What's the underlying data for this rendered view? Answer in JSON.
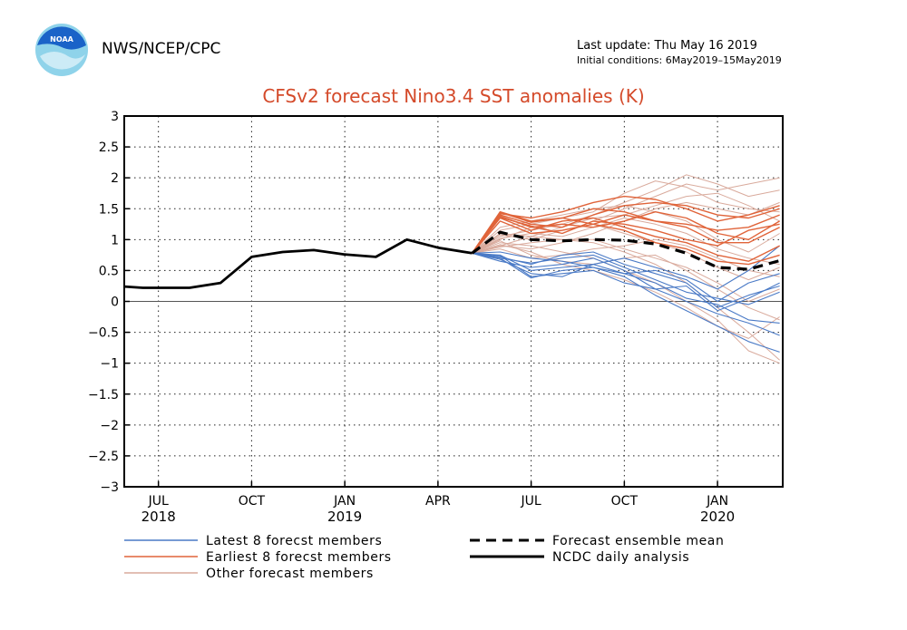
{
  "header": {
    "logo_text": "NOAA",
    "agency": "NWS/NCEP/CPC",
    "last_update": "Last update: Thu May 16 2019",
    "initial_conditions": "Initial conditions: 6May2019–15May2019"
  },
  "colors": {
    "latest": "#4a7ac6",
    "earliest": "#e0643a",
    "other": "#d9aa9c",
    "mean": "#000000",
    "analysis": "#000000",
    "title": "#d44a2a",
    "noaa_blue": "#1a63c8",
    "noaa_cyan": "#8fd3ea"
  },
  "chart_data": {
    "type": "line",
    "title": "CFSv2 forecast Nino3.4 SST anomalies (K)",
    "xlabel": "",
    "ylabel": "",
    "xlim": [
      -2.1,
      19.1
    ],
    "ylim": [
      -3,
      3
    ],
    "yticks": [
      3,
      2.5,
      2,
      1.5,
      1,
      0.5,
      0,
      -0.5,
      -1,
      -1.5,
      -2,
      -2.5,
      -3
    ],
    "ytick_labels": [
      "3",
      "2.5",
      "2",
      "1.5",
      "1",
      "0.5",
      "0",
      "−0.5",
      "−1",
      "−1.5",
      "−2",
      "−2.5",
      "−3"
    ],
    "xticks": [
      {
        "x": -1,
        "label": "JUL",
        "year": "2018"
      },
      {
        "x": 2,
        "label": "OCT",
        "year": ""
      },
      {
        "x": 5,
        "label": "JAN",
        "year": "2019"
      },
      {
        "x": 8,
        "label": "APR",
        "year": ""
      },
      {
        "x": 11,
        "label": "JUL",
        "year": ""
      },
      {
        "x": 14,
        "label": "OCT",
        "year": ""
      },
      {
        "x": 17,
        "label": "JAN",
        "year": "2020"
      }
    ],
    "grid": true,
    "x_unit": "months since Oct 2018 (0 = Sep 2018)",
    "series": [
      {
        "name": "NCDC daily analysis",
        "style": "analysis",
        "x": [
          -2.1,
          -1.5,
          -0.9,
          0,
          1,
          2,
          3,
          4,
          5,
          6,
          7,
          8,
          9.1
        ],
        "values": [
          0.24,
          0.22,
          0.22,
          0.22,
          0.3,
          0.72,
          0.8,
          0.83,
          0.76,
          0.72,
          1.0,
          0.87,
          0.78
        ]
      },
      {
        "name": "Forecast ensemble mean",
        "style": "mean",
        "x": [
          9.1,
          10,
          11,
          12,
          13,
          14,
          15,
          16,
          17,
          18,
          19
        ],
        "values": [
          0.78,
          1.12,
          1.0,
          0.98,
          1.0,
          0.99,
          0.93,
          0.78,
          0.55,
          0.52,
          0.66
        ]
      }
    ],
    "members": {
      "x": [
        9.1,
        10,
        11,
        12,
        13,
        14,
        15,
        16,
        17,
        18,
        19
      ],
      "latest": [
        [
          0.78,
          0.7,
          0.38,
          0.5,
          0.55,
          0.4,
          0.1,
          -0.15,
          -0.4,
          -0.65,
          -0.82
        ],
        [
          0.78,
          0.65,
          0.55,
          0.6,
          0.7,
          0.5,
          0.2,
          0.0,
          -0.2,
          -0.35,
          -0.55
        ],
        [
          0.78,
          0.72,
          0.6,
          0.75,
          0.8,
          0.6,
          0.45,
          0.3,
          -0.1,
          0.1,
          0.25
        ],
        [
          0.78,
          0.75,
          0.5,
          0.55,
          0.6,
          0.45,
          0.3,
          0.05,
          -0.05,
          -0.3,
          -0.35
        ],
        [
          0.78,
          0.68,
          0.45,
          0.4,
          0.6,
          0.7,
          0.55,
          0.4,
          0.2,
          0.5,
          0.9
        ],
        [
          0.78,
          0.8,
          0.7,
          0.65,
          0.55,
          0.45,
          0.5,
          0.35,
          0.0,
          0.3,
          0.45
        ],
        [
          0.78,
          0.7,
          0.62,
          0.7,
          0.75,
          0.55,
          0.35,
          0.15,
          0.05,
          -0.05,
          0.15
        ],
        [
          0.78,
          0.74,
          0.4,
          0.45,
          0.5,
          0.3,
          0.2,
          0.25,
          -0.15,
          0.05,
          0.3
        ]
      ],
      "earliest": [
        [
          0.78,
          1.45,
          1.3,
          1.35,
          1.5,
          1.45,
          1.3,
          1.2,
          0.95,
          0.95,
          1.2
        ],
        [
          0.78,
          1.4,
          1.25,
          1.2,
          1.4,
          1.55,
          1.6,
          1.55,
          1.4,
          1.35,
          1.5
        ],
        [
          0.78,
          1.35,
          1.15,
          1.3,
          1.35,
          1.2,
          1.05,
          0.95,
          0.75,
          0.65,
          0.9
        ],
        [
          0.78,
          1.38,
          1.2,
          1.25,
          1.2,
          1.3,
          1.45,
          1.35,
          1.1,
          1.0,
          1.3
        ],
        [
          0.78,
          1.42,
          1.35,
          1.45,
          1.6,
          1.7,
          1.65,
          1.5,
          1.3,
          1.4,
          1.55
        ],
        [
          0.78,
          1.3,
          1.1,
          1.15,
          1.25,
          1.15,
          0.95,
          0.85,
          0.65,
          0.6,
          0.75
        ],
        [
          0.78,
          1.44,
          1.28,
          1.35,
          1.25,
          1.4,
          1.3,
          1.25,
          1.15,
          1.2,
          1.4
        ],
        [
          0.78,
          1.36,
          1.22,
          1.1,
          1.3,
          1.25,
          1.15,
          1.0,
          0.9,
          1.15,
          1.25
        ]
      ],
      "other": [
        [
          0.78,
          1.0,
          1.2,
          1.1,
          1.3,
          1.5,
          1.7,
          1.9,
          1.8,
          1.9,
          2.0
        ],
        [
          0.78,
          0.9,
          0.85,
          0.95,
          1.1,
          1.3,
          1.5,
          1.6,
          1.5,
          1.4,
          1.6
        ],
        [
          0.78,
          1.1,
          1.05,
          1.0,
          0.95,
          0.8,
          0.6,
          0.3,
          -0.1,
          -0.5,
          -0.95
        ],
        [
          0.78,
          0.95,
          0.9,
          0.8,
          0.7,
          0.5,
          0.3,
          0.0,
          -0.3,
          -0.8,
          -1.0
        ],
        [
          0.78,
          1.05,
          1.15,
          1.25,
          1.4,
          1.6,
          1.8,
          2.05,
          1.9,
          1.7,
          1.8
        ],
        [
          0.78,
          0.85,
          0.7,
          0.75,
          0.85,
          0.9,
          1.0,
          0.9,
          0.7,
          0.5,
          0.4
        ],
        [
          0.78,
          1.2,
          1.3,
          1.4,
          1.5,
          1.55,
          1.45,
          1.3,
          1.0,
          0.8,
          1.1
        ],
        [
          0.78,
          0.92,
          0.8,
          0.6,
          0.5,
          0.35,
          0.15,
          -0.1,
          -0.4,
          -0.6,
          -0.25
        ],
        [
          0.78,
          1.02,
          1.1,
          1.05,
          1.2,
          1.35,
          1.25,
          1.1,
          0.85,
          0.7,
          0.6
        ],
        [
          0.78,
          0.88,
          0.95,
          1.0,
          1.0,
          0.85,
          0.7,
          0.55,
          0.3,
          0.0,
          0.2
        ],
        [
          0.78,
          1.15,
          1.25,
          1.35,
          1.45,
          1.75,
          1.95,
          1.85,
          1.6,
          1.5,
          1.45
        ],
        [
          0.78,
          0.98,
          0.75,
          0.65,
          0.6,
          0.7,
          0.75,
          0.5,
          0.2,
          -0.1,
          -0.3
        ],
        [
          0.78,
          1.08,
          1.0,
          1.15,
          1.25,
          1.1,
          0.95,
          0.8,
          0.55,
          0.35,
          0.55
        ],
        [
          0.78,
          0.9,
          1.05,
          1.2,
          1.35,
          1.4,
          1.55,
          1.7,
          1.75,
          1.55,
          1.3
        ]
      ]
    },
    "legend": [
      {
        "label": "Latest 8 forecst members",
        "style": "latest"
      },
      {
        "label": "Earliest 8 forecst members",
        "style": "earliest"
      },
      {
        "label": "Other forecast members",
        "style": "other"
      },
      {
        "label": "Forecast ensemble mean",
        "style": "mean"
      },
      {
        "label": "NCDC daily analysis",
        "style": "analysis"
      }
    ],
    "legend_position": "bottom"
  }
}
